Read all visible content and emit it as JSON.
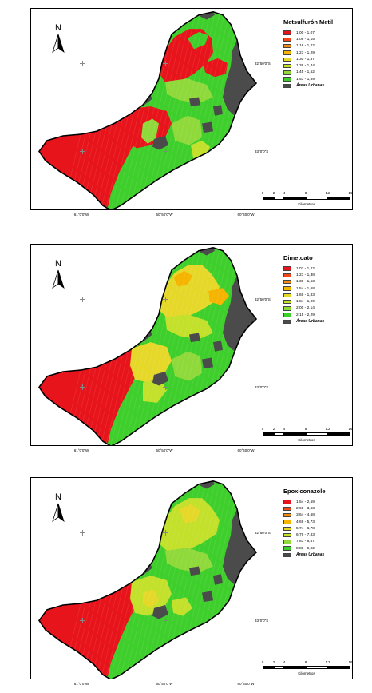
{
  "map_title": "",
  "colors": {
    "red": "#e8141b",
    "red_orange": "#f04a1a",
    "orange": "#f28c14",
    "amber": "#f5b400",
    "yellow": "#e6d829",
    "yellow_green": "#c3e02b",
    "light_green": "#8fd93b",
    "green": "#3fcf2c",
    "urban": "#4b4b4b"
  },
  "scale": {
    "ticks": [
      "0",
      "2",
      "4",
      "8",
      "12",
      "16"
    ],
    "unit": "Kilometros"
  },
  "north_arrow": {
    "letter": "N",
    "icon": "north-arrow-icon"
  },
  "coords": {
    "lat_top": "32°50'0\"S",
    "lat_bottom": "33°0'0\"S",
    "lon_left": "61°0'0\"W",
    "lon_mid": "60°50'0\"W",
    "lon_right": "60°40'0\"W"
  },
  "maps": [
    {
      "id": "metsulfuron",
      "legend_title": "Metsulfurón Metil",
      "legend": [
        {
          "label": "1,00 - 1,07",
          "color": "#e8141b"
        },
        {
          "label": "1,08 - 1,15",
          "color": "#f04a1a"
        },
        {
          "label": "1,16 - 1,22",
          "color": "#f28c14"
        },
        {
          "label": "1,23 - 1,29",
          "color": "#f5b400"
        },
        {
          "label": "1,30 - 1,37",
          "color": "#e6d829"
        },
        {
          "label": "1,38 - 1,44",
          "color": "#c3e02b"
        },
        {
          "label": "1,45 - 1,52",
          "color": "#8fd93b"
        },
        {
          "label": "1,53 - 1,59",
          "color": "#3fcf2c"
        }
      ],
      "urban_label": "Áreas Urbanas"
    },
    {
      "id": "dimetoato",
      "legend_title": "Dimetoato",
      "legend": [
        {
          "label": "1,07 - 1,22",
          "color": "#e8141b"
        },
        {
          "label": "1,23 - 1,38",
          "color": "#f04a1a"
        },
        {
          "label": "1,39 - 1,53",
          "color": "#f28c14"
        },
        {
          "label": "1,54 - 1,68",
          "color": "#f5b400"
        },
        {
          "label": "1,69 - 1,83",
          "color": "#e6d829"
        },
        {
          "label": "1,84 - 1,99",
          "color": "#c3e02b"
        },
        {
          "label": "2,00 - 2,14",
          "color": "#8fd93b"
        },
        {
          "label": "2,15 - 2,29",
          "color": "#3fcf2c"
        }
      ],
      "urban_label": "Áreas Urbanas"
    },
    {
      "id": "epoxiconazole",
      "legend_title": "Epoxiconazole",
      "legend": [
        {
          "label": "1,54 - 2,59",
          "color": "#e8141b"
        },
        {
          "label": "2,60 - 3,63",
          "color": "#f04a1a"
        },
        {
          "label": "3,64 - 4,68",
          "color": "#f28c14"
        },
        {
          "label": "4,69 - 5,73",
          "color": "#f5b400"
        },
        {
          "label": "5,74 - 6,78",
          "color": "#e6d829"
        },
        {
          "label": "6,79 - 7,83",
          "color": "#c3e02b"
        },
        {
          "label": "7,83 - 8,87",
          "color": "#8fd93b"
        },
        {
          "label": "8,88 - 9,92",
          "color": "#3fcf2c"
        }
      ],
      "urban_label": "Áreas Urbanas"
    }
  ]
}
